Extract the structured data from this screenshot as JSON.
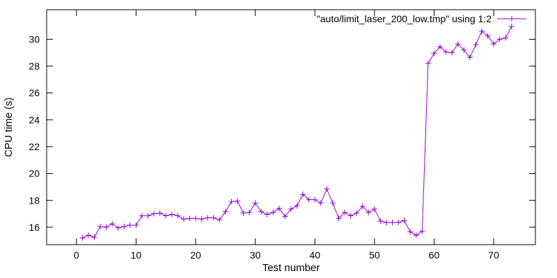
{
  "chart_data": {
    "type": "line",
    "title": "",
    "xlabel": "Test number",
    "ylabel": "CPU time (s)",
    "xlim": [
      -5,
      77
    ],
    "ylim": [
      14.7,
      32.2
    ],
    "x_ticks": [
      0,
      10,
      20,
      30,
      40,
      50,
      60,
      70
    ],
    "y_ticks": [
      16,
      18,
      20,
      22,
      24,
      26,
      28,
      30
    ],
    "x_tick_labels": [
      "0",
      "10",
      "20",
      "30",
      "40",
      "50",
      "60",
      "70"
    ],
    "y_tick_labels": [
      "16",
      "18",
      "20",
      "22",
      "24",
      "26",
      "28",
      "30"
    ],
    "grid": false,
    "legend_position": "top-right",
    "series": [
      {
        "name": "\"auto/limit_laser_200_low.tmp\" using 1:2",
        "color": "#9400d3",
        "marker": "plus",
        "x": [
          1,
          2,
          3,
          4,
          5,
          6,
          7,
          8,
          9,
          10,
          11,
          12,
          13,
          14,
          15,
          16,
          17,
          18,
          19,
          20,
          21,
          22,
          23,
          24,
          25,
          26,
          27,
          28,
          29,
          30,
          31,
          32,
          33,
          34,
          35,
          36,
          37,
          38,
          39,
          40,
          41,
          42,
          43,
          44,
          45,
          46,
          47,
          48,
          49,
          50,
          51,
          52,
          53,
          54,
          55,
          56,
          57,
          58,
          59,
          60,
          61,
          62,
          63,
          64,
          65,
          66,
          67,
          68,
          69,
          70,
          71,
          72,
          73
        ],
        "y": [
          15.2,
          15.4,
          15.25,
          16.05,
          16.0,
          16.25,
          15.95,
          16.05,
          16.15,
          16.15,
          16.85,
          16.85,
          17.0,
          17.05,
          16.85,
          16.95,
          16.85,
          16.6,
          16.65,
          16.65,
          16.6,
          16.7,
          16.7,
          16.55,
          17.15,
          17.9,
          17.95,
          17.05,
          17.1,
          17.8,
          17.15,
          16.95,
          17.1,
          17.4,
          16.8,
          17.35,
          17.6,
          18.45,
          18.05,
          18.05,
          17.8,
          18.85,
          17.8,
          16.65,
          17.1,
          16.85,
          17.05,
          17.55,
          17.1,
          17.35,
          16.45,
          16.35,
          16.35,
          16.35,
          16.5,
          15.65,
          15.4,
          15.7,
          28.2,
          28.95,
          29.45,
          29.05,
          29.0,
          29.65,
          29.2,
          28.65,
          29.6,
          30.6,
          30.25,
          29.65,
          30.0,
          30.1,
          30.95
        ]
      }
    ]
  }
}
